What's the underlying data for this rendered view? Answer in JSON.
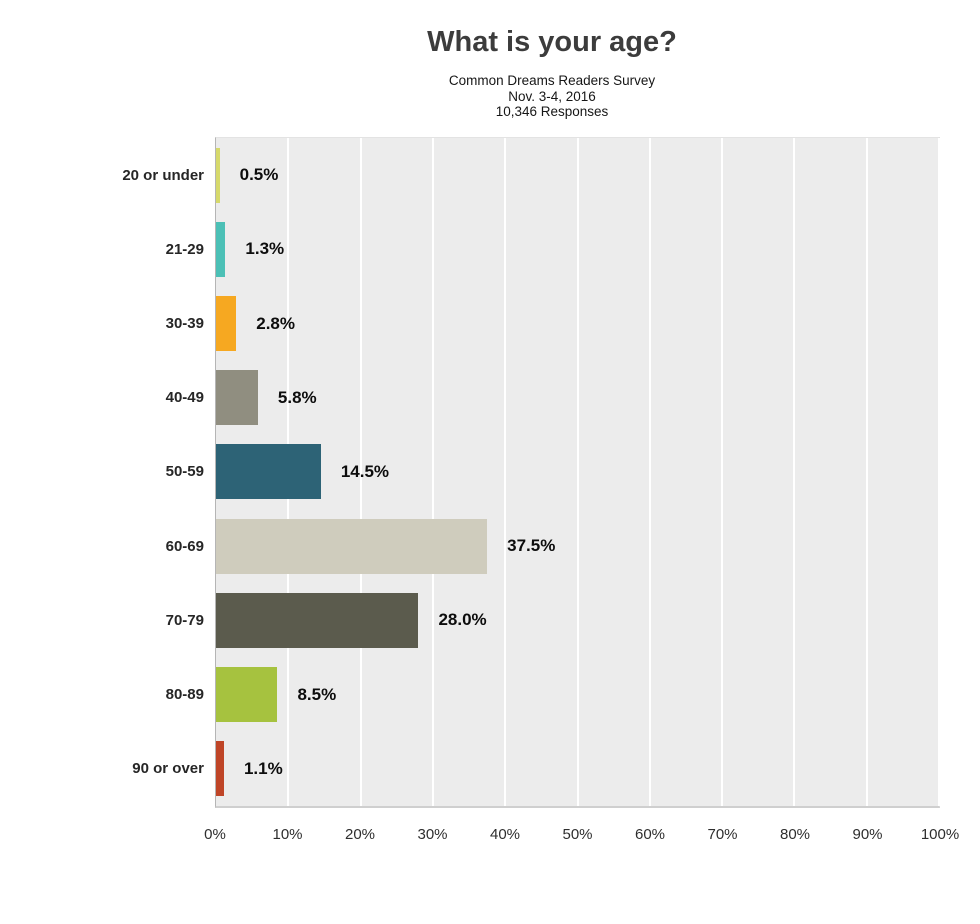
{
  "header": {
    "title": "What is your age?",
    "subtitle_lines": [
      "Common Dreams Readers Survey",
      "Nov. 3-4, 2016",
      "10,346 Responses"
    ]
  },
  "chart_data": {
    "type": "bar",
    "orientation": "horizontal",
    "title": "What is your age?",
    "subtitle": "Common Dreams Readers Survey — Nov. 3-4, 2016 — 10,346 Responses",
    "categories": [
      "20 or under",
      "21-29",
      "30-39",
      "40-49",
      "50-59",
      "60-69",
      "70-79",
      "80-89",
      "90 or over"
    ],
    "values": [
      0.5,
      1.3,
      2.8,
      5.8,
      14.5,
      37.5,
      28.0,
      8.5,
      1.1
    ],
    "value_labels": [
      "0.5%",
      "1.3%",
      "2.8%",
      "5.8%",
      "14.5%",
      "37.5%",
      "28.0%",
      "8.5%",
      "1.1%"
    ],
    "bar_colors": [
      "#d6d96b",
      "#4cc0b6",
      "#f6a821",
      "#908e80",
      "#2d6376",
      "#cfccbd",
      "#5b5b4d",
      "#a6c23f",
      "#bf4527"
    ],
    "xlim": [
      0,
      100
    ],
    "x_tick_labels": [
      "0%",
      "10%",
      "20%",
      "30%",
      "40%",
      "50%",
      "60%",
      "70%",
      "80%",
      "90%",
      "100%"
    ],
    "xlabel": "",
    "ylabel": "",
    "grid": true,
    "legend": "none",
    "plot_background": "#ececec",
    "gridline_color": "#ffffff",
    "axis_line_color": "#b5b5b5",
    "title_color": "#3c3c3c",
    "label_color": "#0d0d0d"
  }
}
